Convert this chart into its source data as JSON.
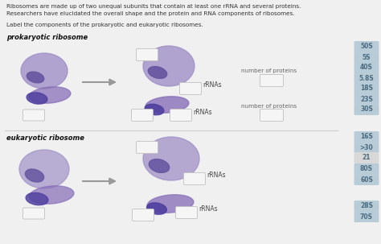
{
  "background_color": "#f0f0f0",
  "title_line1": "Ribosomes are made up of two unequal subunits that contain at least one rRNA and several proteins.",
  "title_line2": "Researchers have elucidated the overall shape and the protein and RNA components of ribosomes.",
  "subtitle_text": "Label the components of the prokaryotic and eukaryotic ribosomes.",
  "prokaryotic_label": "prokaryotic ribosome",
  "eukaryotic_label": "eukaryotic ribosome",
  "rrnas_label": "rRNAs",
  "number_of_proteins_label": "number of proteins",
  "right_labels": [
    "50S",
    "5S",
    "40S",
    "5.8S",
    "18S",
    "23S",
    "30S",
    "16S",
    ">30",
    "21",
    "80S",
    "60S",
    "28S",
    "70S"
  ],
  "right_label_bg": "#b8ccd8",
  "right_label_21_bg": "#d8d8d8",
  "right_label_text_color": "#4a6a80",
  "large_subunit_light": "#9b8ac4",
  "large_subunit_dark": "#6655a0",
  "small_subunit_light": "#8870b8",
  "small_subunit_dark": "#5040a0",
  "arrow_color": "#999999",
  "box_facecolor": "#f5f5f5",
  "box_edgecolor": "#c0c0c0",
  "divider_color": "#cccccc",
  "text_color": "#333333",
  "label_color_dark": "#111111"
}
